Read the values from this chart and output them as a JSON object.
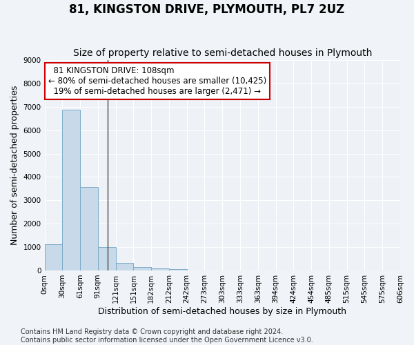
{
  "title": "81, KINGSTON DRIVE, PLYMOUTH, PL7 2UZ",
  "subtitle": "Size of property relative to semi-detached houses in Plymouth",
  "xlabel": "Distribution of semi-detached houses by size in Plymouth",
  "ylabel": "Number of semi-detached properties",
  "bar_color": "#c8daea",
  "bar_edge_color": "#7aaac8",
  "bins": [
    0,
    30,
    61,
    91,
    121,
    151,
    182,
    212,
    242,
    273,
    303,
    333,
    363,
    394,
    424,
    454,
    485,
    515,
    545,
    575,
    606
  ],
  "bin_labels": [
    "0sqm",
    "30sqm",
    "61sqm",
    "91sqm",
    "121sqm",
    "151sqm",
    "182sqm",
    "212sqm",
    "242sqm",
    "273sqm",
    "303sqm",
    "333sqm",
    "363sqm",
    "394sqm",
    "424sqm",
    "454sqm",
    "485sqm",
    "515sqm",
    "545sqm",
    "575sqm",
    "606sqm"
  ],
  "counts": [
    1130,
    6880,
    3560,
    1000,
    320,
    140,
    100,
    70,
    0,
    0,
    0,
    0,
    0,
    0,
    0,
    0,
    0,
    0,
    0,
    0
  ],
  "ylim": [
    0,
    9000
  ],
  "yticks": [
    0,
    1000,
    2000,
    3000,
    4000,
    5000,
    6000,
    7000,
    8000,
    9000
  ],
  "property_size": 108,
  "property_label": "81 KINGSTON DRIVE: 108sqm",
  "pct_smaller": 80,
  "count_smaller": "10,425",
  "pct_larger": 19,
  "count_larger": "2,471",
  "annotation_box_color": "#ffffff",
  "annotation_box_edge_color": "#cc0000",
  "vline_color": "#444444",
  "background_color": "#f0f4f8",
  "plot_bg_color": "#eef2f7",
  "footer": "Contains HM Land Registry data © Crown copyright and database right 2024.\nContains public sector information licensed under the Open Government Licence v3.0.",
  "grid_color": "#ffffff",
  "title_fontsize": 12,
  "subtitle_fontsize": 10,
  "axis_label_fontsize": 9,
  "tick_fontsize": 7.5,
  "annotation_fontsize": 8.5,
  "footer_fontsize": 7
}
